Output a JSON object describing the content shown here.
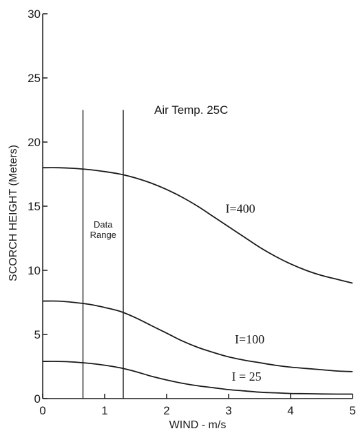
{
  "chart_data": {
    "type": "line",
    "title": "",
    "xlabel": "WIND - m/s",
    "ylabel": "SCORCH HEIGHT (Meters)",
    "xlim": [
      0,
      5
    ],
    "ylim": [
      0,
      30
    ],
    "x_ticks": [
      0,
      1,
      2,
      3,
      4,
      5
    ],
    "y_ticks": [
      0,
      5,
      10,
      15,
      20,
      25,
      30
    ],
    "grid": false,
    "series": [
      {
        "name": "I=400",
        "x": [
          0,
          0.25,
          0.5,
          0.75,
          1,
          1.25,
          1.5,
          1.75,
          2,
          2.25,
          2.5,
          2.75,
          3,
          3.25,
          3.5,
          3.75,
          4,
          4.25,
          4.5,
          4.75,
          5
        ],
        "values": [
          18.0,
          18.0,
          17.95,
          17.85,
          17.7,
          17.5,
          17.2,
          16.8,
          16.3,
          15.7,
          15.0,
          14.2,
          13.4,
          12.6,
          11.8,
          11.1,
          10.5,
          10.0,
          9.6,
          9.3,
          9.0
        ]
      },
      {
        "name": "I=100",
        "x": [
          0,
          0.25,
          0.5,
          0.75,
          1,
          1.25,
          1.5,
          1.75,
          2,
          2.25,
          2.5,
          2.75,
          3,
          3.25,
          3.5,
          3.75,
          4,
          4.25,
          4.5,
          4.75,
          5
        ],
        "values": [
          7.6,
          7.6,
          7.5,
          7.35,
          7.1,
          6.8,
          6.3,
          5.7,
          5.1,
          4.5,
          4.0,
          3.6,
          3.25,
          3.0,
          2.8,
          2.6,
          2.45,
          2.35,
          2.25,
          2.15,
          2.1
        ]
      },
      {
        "name": "I = 25",
        "x": [
          0,
          0.25,
          0.5,
          0.75,
          1,
          1.25,
          1.5,
          1.75,
          2,
          2.25,
          2.5,
          2.75,
          3,
          3.25,
          3.5,
          3.75,
          4,
          4.25,
          4.5,
          4.75,
          5
        ],
        "values": [
          2.9,
          2.9,
          2.85,
          2.75,
          2.6,
          2.4,
          2.1,
          1.75,
          1.45,
          1.2,
          1.0,
          0.85,
          0.7,
          0.6,
          0.5,
          0.45,
          0.4,
          0.38,
          0.36,
          0.35,
          0.35
        ]
      }
    ],
    "data_range": [
      0.65,
      1.3
    ],
    "data_range_top": 22.5,
    "annotations": {
      "data_range_label": [
        "Data",
        "Range"
      ],
      "air_temp": "Air Temp. 25C"
    },
    "label_anchors": [
      {
        "series": 0,
        "x": 2.95,
        "y": 14.5
      },
      {
        "series": 1,
        "x": 3.1,
        "y": 4.3
      },
      {
        "series": 2,
        "x": 3.05,
        "y": 1.4
      }
    ]
  }
}
